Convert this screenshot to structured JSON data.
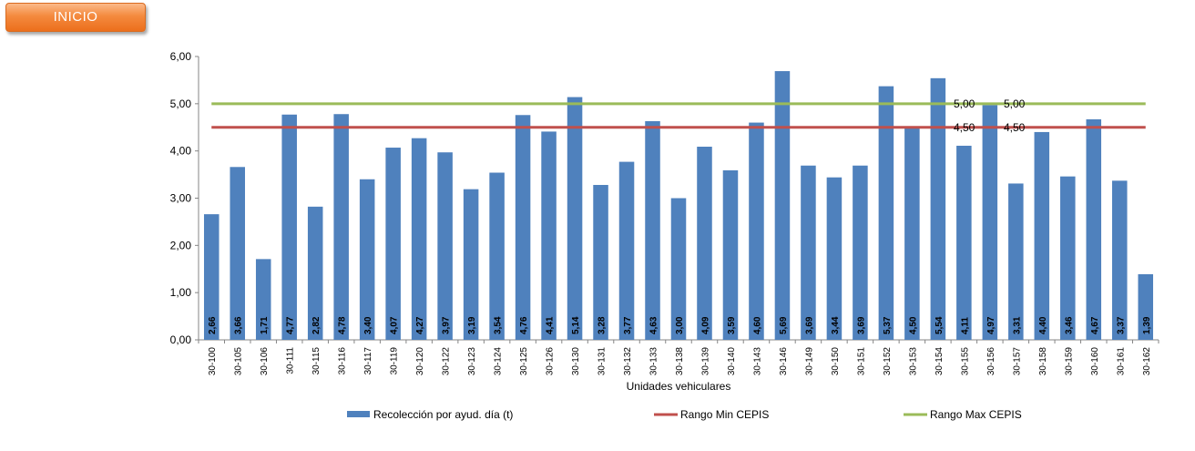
{
  "inicio_button": {
    "label": "INICIO"
  },
  "chart_data": {
    "type": "bar",
    "categories": [
      "30-100",
      "30-105",
      "30-106",
      "30-111",
      "30-115",
      "30-116",
      "30-117",
      "30-119",
      "30-120",
      "30-122",
      "30-123",
      "30-124",
      "30-125",
      "30-126",
      "30-130",
      "30-131",
      "30-132",
      "30-133",
      "30-138",
      "30-139",
      "30-140",
      "30-143",
      "30-146",
      "30-149",
      "30-150",
      "30-151",
      "30-152",
      "30-153",
      "30-154",
      "30-155",
      "30-156",
      "30-157",
      "30-158",
      "30-159",
      "30-160",
      "30-161",
      "30-162"
    ],
    "series": [
      {
        "name": "Recolección por ayud. día (t)",
        "type": "bar",
        "color": "#4f81bd",
        "values": [
          2.66,
          3.66,
          1.71,
          4.77,
          2.82,
          4.78,
          3.4,
          4.07,
          4.27,
          3.97,
          3.19,
          3.54,
          4.76,
          4.41,
          5.14,
          3.28,
          3.77,
          4.63,
          3.0,
          4.09,
          3.59,
          4.6,
          5.69,
          3.69,
          3.44,
          3.69,
          5.37,
          4.5,
          5.54,
          4.11,
          4.97,
          3.31,
          4.4,
          3.46,
          4.67,
          3.37,
          1.39
        ],
        "data_labels": [
          "2,66",
          "3,66",
          "1,71",
          "4,77",
          "2,82",
          "4,78",
          "3,40",
          "4,07",
          "4,27",
          "3,97",
          "3,19",
          "3,54",
          "4,76",
          "4,41",
          "5,14",
          "3,28",
          "3,77",
          "4,63",
          "3,00",
          "4,09",
          "3,59",
          "4,60",
          "5,69",
          "3,69",
          "3,44",
          "3,69",
          "5,37",
          "4,50",
          "5,54",
          "4,11",
          "4,97",
          "3,31",
          "4,40",
          "3,46",
          "4,67",
          "3,37",
          "1,39"
        ]
      },
      {
        "name": "Rango Min CEPIS",
        "type": "line",
        "color": "#c0504d",
        "value": 4.5,
        "data_labels": [
          "4,50",
          "4,50"
        ]
      },
      {
        "name": "Rango Max CEPIS",
        "type": "line",
        "color": "#9bbb59",
        "value": 5.0,
        "data_labels": [
          "5,00",
          "5,00"
        ]
      }
    ],
    "xlabel": "Unidades vehiculares",
    "ylabel": "",
    "ylim": [
      0,
      6
    ],
    "yticks": [
      "0,00",
      "1,00",
      "2,00",
      "3,00",
      "4,00",
      "5,00",
      "6,00"
    ],
    "grid": false,
    "legend_position": "bottom"
  }
}
